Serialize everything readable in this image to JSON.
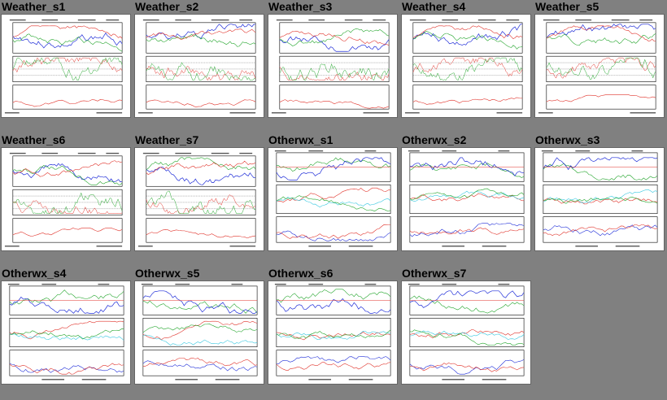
{
  "page": {
    "background": "#808080"
  },
  "colors": {
    "wind": "#1f2dd8",
    "temp": "#e0322a",
    "dew": "#22a52b",
    "cyan": "#35c7e0",
    "magenta": "#e21fd0"
  },
  "panels": [
    {
      "title": "Weather_s1",
      "kind": "weather"
    },
    {
      "title": "Weather_s2",
      "kind": "weather"
    },
    {
      "title": "Weather_s3",
      "kind": "weather"
    },
    {
      "title": "Weather_s4",
      "kind": "weather"
    },
    {
      "title": "Weather_s5",
      "kind": "weather"
    },
    {
      "title": "Weather_s6",
      "kind": "weather"
    },
    {
      "title": "Weather_s7",
      "kind": "weather"
    },
    {
      "title": "Otherwx_s1",
      "kind": "otherwx"
    },
    {
      "title": "Otherwx_s2",
      "kind": "otherwx"
    },
    {
      "title": "Otherwx_s3",
      "kind": "otherwx"
    },
    {
      "title": "Otherwx_s4",
      "kind": "otherwx"
    },
    {
      "title": "Otherwx_s5",
      "kind": "otherwx"
    },
    {
      "title": "Otherwx_s6",
      "kind": "otherwx"
    },
    {
      "title": "Otherwx_s7",
      "kind": "otherwx"
    }
  ]
}
